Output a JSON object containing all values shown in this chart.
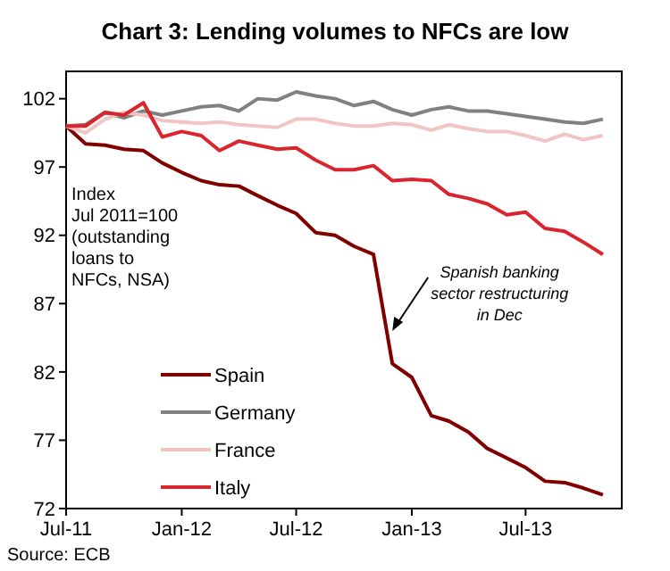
{
  "chart_data": {
    "type": "line",
    "title": "Chart 3: Lending volumes  to NFCs are low",
    "x": [
      "2011-07",
      "2011-08",
      "2011-09",
      "2011-10",
      "2011-11",
      "2011-12",
      "2012-01",
      "2012-02",
      "2012-03",
      "2012-04",
      "2012-05",
      "2012-06",
      "2012-07",
      "2012-08",
      "2012-09",
      "2012-10",
      "2012-11",
      "2012-12",
      "2013-01",
      "2013-02",
      "2013-03",
      "2013-04",
      "2013-05",
      "2013-06",
      "2013-07",
      "2013-08",
      "2013-09",
      "2013-10",
      "2013-11"
    ],
    "series": [
      {
        "name": "Spain",
        "color": "#800000",
        "values": [
          100,
          98.7,
          98.6,
          98.3,
          98.2,
          97.3,
          96.6,
          96.0,
          95.7,
          95.6,
          94.9,
          94.2,
          93.6,
          92.2,
          92.0,
          91.2,
          90.6,
          82.6,
          81.6,
          78.8,
          78.4,
          77.6,
          76.4,
          75.7,
          75.0,
          74.0,
          73.9,
          73.5,
          73.0
        ]
      },
      {
        "name": "Germany",
        "color": "#808080",
        "values": [
          100,
          100.1,
          101.0,
          100.6,
          101.1,
          100.8,
          101.1,
          101.4,
          101.5,
          101.1,
          102.0,
          101.9,
          102.5,
          102.2,
          102.0,
          101.5,
          101.8,
          101.2,
          100.8,
          101.2,
          101.4,
          101.1,
          101.1,
          100.9,
          100.7,
          100.5,
          100.3,
          100.2,
          100.5
        ]
      },
      {
        "name": "France",
        "color": "#f2c4c4",
        "values": [
          100,
          99.5,
          100.5,
          101.0,
          100.8,
          100.4,
          100.3,
          100.2,
          100.3,
          100.1,
          100.0,
          99.9,
          100.5,
          100.5,
          100.2,
          100.0,
          100.0,
          100.2,
          100.1,
          99.7,
          100.1,
          99.8,
          99.6,
          99.6,
          99.3,
          98.9,
          99.4,
          99.0,
          99.3
        ]
      },
      {
        "name": "Italy",
        "color": "#d9262e",
        "values": [
          100,
          100,
          101.0,
          100.8,
          101.7,
          99.2,
          99.6,
          99.3,
          98.2,
          98.9,
          98.6,
          98.3,
          98.4,
          97.5,
          96.8,
          96.8,
          97.1,
          96.0,
          96.1,
          96.0,
          95.0,
          94.7,
          94.3,
          93.5,
          93.7,
          92.5,
          92.3,
          91.5,
          90.6
        ]
      }
    ],
    "xlim": [
      "2011-07",
      "2013-12"
    ],
    "xticks": [
      {
        "value": "2011-07",
        "label": "Jul-11"
      },
      {
        "value": "2012-01",
        "label": "Jan-12"
      },
      {
        "value": "2012-07",
        "label": "Jul-12"
      },
      {
        "value": "2013-01",
        "label": "Jan-13"
      },
      {
        "value": "2013-07",
        "label": "Jul-13"
      }
    ],
    "ylim": [
      72,
      104
    ],
    "yticks": [
      72,
      77,
      82,
      87,
      92,
      97,
      102
    ],
    "grid": false,
    "legend": "bottom left",
    "marker": "none",
    "line_style": "solid",
    "annotations": [
      "Index\nJul 2011=100\n(outstanding\nloans to\nNFCs,  NSA)",
      {
        "text": "Spanish banking\nsector restructuring\nin Dec",
        "x": "2012-12",
        "y": 85
      },
      "Source: ECB"
    ]
  }
}
